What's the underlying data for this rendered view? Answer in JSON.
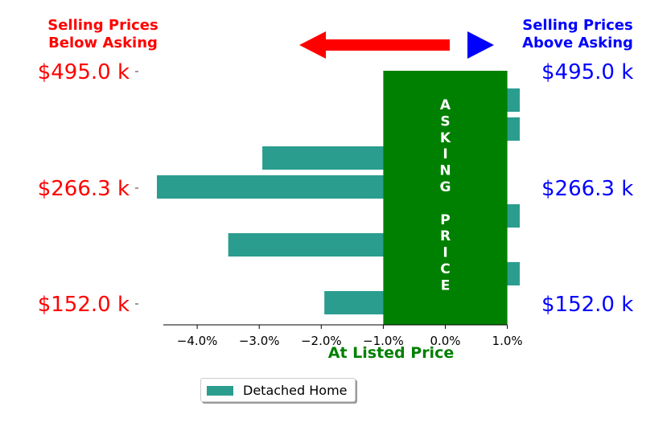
{
  "header": {
    "left_line1": "Selling Prices",
    "left_line2": "Below Asking",
    "right_line1": "Selling Prices",
    "right_line2": "Above Asking"
  },
  "colors": {
    "below": "#ff0000",
    "above": "#0000ff",
    "bar": "#2a9d8f",
    "asking_band": "#008000"
  },
  "icons": {
    "left_arrow": "left-arrow-icon",
    "right_arrow": "right-arrow-icon"
  },
  "chart_data": {
    "type": "bar",
    "orientation": "horizontal",
    "xlim": [
      -5.0,
      1.5
    ],
    "x_ticks": [
      -4,
      -3,
      -2,
      -1,
      0,
      1
    ],
    "x_tick_labels": [
      "−4.0%",
      "−3.0%",
      "−2.0%",
      "−1.0%",
      "0.0%",
      "1.0%"
    ],
    "xlabel": "At Listed Price",
    "y_tick_labels": [
      "$495.0 k",
      "$266.3 k",
      "$152.0 k"
    ],
    "asking_band": {
      "x_range": [
        -1.0,
        1.0
      ],
      "label": "ASKING PRICE"
    },
    "series": [
      {
        "name": "Detached Home",
        "values": [
          1.2,
          1.2,
          -2.95,
          -4.65,
          1.2,
          -3.5,
          1.2,
          -1.95
        ]
      }
    ],
    "legend": {
      "entries": [
        "Detached Home"
      ],
      "placement": "bottom"
    },
    "grid": false
  }
}
